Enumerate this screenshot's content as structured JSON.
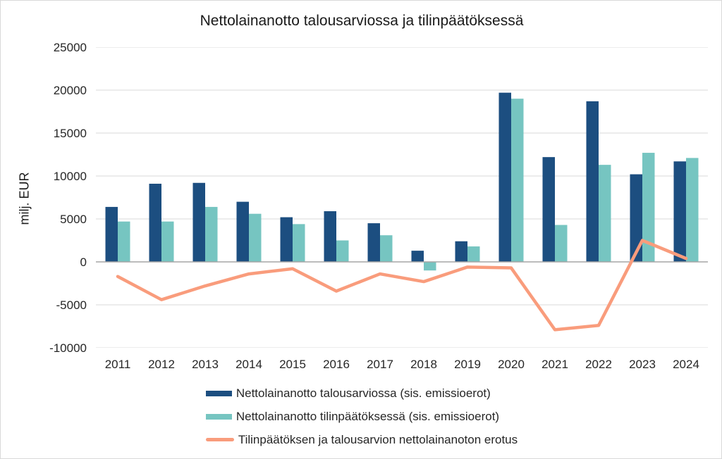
{
  "chart_data": {
    "type": "bar",
    "title": "Nettolainanotto talousarviossa ja tilinpäätöksessä",
    "ylabel": "milj. EUR",
    "xlabel": "",
    "categories": [
      "2011",
      "2012",
      "2013",
      "2014",
      "2015",
      "2016",
      "2017",
      "2018",
      "2019",
      "2020",
      "2021",
      "2022",
      "2023",
      "2024"
    ],
    "y_ticks": [
      25000,
      20000,
      15000,
      10000,
      5000,
      0,
      -5000,
      -10000
    ],
    "ylim": [
      -10000,
      25000
    ],
    "grid": true,
    "legend_position": "bottom",
    "series": [
      {
        "name": "Nettolainanotto talousarviossa (sis. emissioerot)",
        "type": "bar",
        "color": "#1C4E80",
        "values": [
          6400,
          9100,
          9200,
          7000,
          5200,
          5900,
          4500,
          1300,
          2400,
          19700,
          12200,
          18700,
          10200,
          11700
        ]
      },
      {
        "name": "Nettolainanotto tilinpäätöksessä (sis. emissioerot)",
        "type": "bar",
        "color": "#76C5C1",
        "values": [
          4700,
          4700,
          6400,
          5600,
          4400,
          2500,
          3100,
          -1000,
          1800,
          19000,
          4300,
          11300,
          12700,
          12100
        ]
      },
      {
        "name": "Tilinpäätöksen ja talousarvion nettolainanoton erotus",
        "type": "line",
        "color": "#F99C7C",
        "values": [
          -1700,
          -4400,
          -2800,
          -1400,
          -800,
          -3400,
          -1400,
          -2300,
          -600,
          -700,
          -7900,
          -7400,
          2500,
          400
        ]
      }
    ],
    "style": {
      "grid_color": "#D9D9D9",
      "axis_color": "#A6A6A6",
      "text_color": "#262626"
    }
  }
}
